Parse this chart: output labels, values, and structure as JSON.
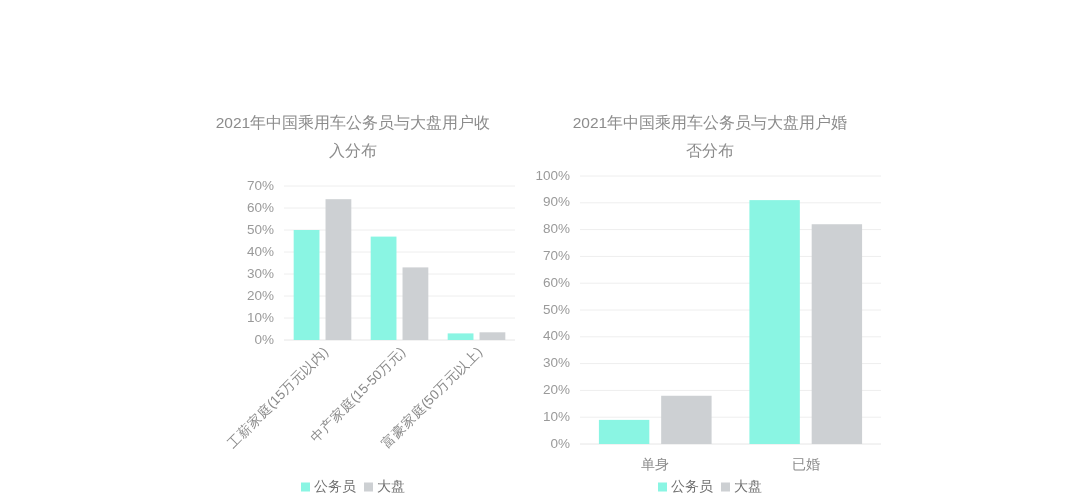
{
  "chart_data": [
    {
      "type": "bar",
      "title": "2021年中国乘用车公务员与大盘用户收入分布",
      "categories": [
        "工薪家庭(15万元以内)",
        "中产家庭(15-50万元)",
        "富豪家庭(50万元以上)"
      ],
      "series": [
        {
          "name": "公务员",
          "color": "#8af5e3",
          "values": [
            50,
            47,
            3
          ]
        },
        {
          "name": "大盘",
          "color": "#cdd0d3",
          "values": [
            64,
            33,
            3.5
          ]
        }
      ],
      "ylim": [
        0,
        70
      ],
      "yticks": [
        {
          "value": 0,
          "label": "0%"
        },
        {
          "value": 10,
          "label": "10%"
        },
        {
          "value": 20,
          "label": "20%"
        },
        {
          "value": 30,
          "label": "30%"
        },
        {
          "value": 40,
          "label": "40%"
        },
        {
          "value": 50,
          "label": "50%"
        },
        {
          "value": 60,
          "label": "60%"
        },
        {
          "value": 70,
          "label": "70%"
        }
      ],
      "grid": "y",
      "legend": "bottom"
    },
    {
      "type": "bar",
      "title": "2021年中国乘用车公务员与大盘用户婚否分布",
      "categories": [
        "单身",
        "已婚"
      ],
      "series": [
        {
          "name": "公务员",
          "color": "#8af5e3",
          "values": [
            9,
            91
          ]
        },
        {
          "name": "大盘",
          "color": "#cdd0d3",
          "values": [
            18,
            82
          ]
        }
      ],
      "ylim": [
        0,
        100
      ],
      "yticks": [
        {
          "value": 0,
          "label": "0%"
        },
        {
          "value": 10,
          "label": "10%"
        },
        {
          "value": 20,
          "label": "20%"
        },
        {
          "value": 30,
          "label": "30%"
        },
        {
          "value": 40,
          "label": "40%"
        },
        {
          "value": 50,
          "label": "50%"
        },
        {
          "value": 60,
          "label": "60%"
        },
        {
          "value": 70,
          "label": "70%"
        },
        {
          "value": 80,
          "label": "80%"
        },
        {
          "value": 90,
          "label": "90%"
        },
        {
          "value": 100,
          "label": "100%"
        }
      ],
      "grid": "y",
      "legend": "bottom"
    }
  ]
}
